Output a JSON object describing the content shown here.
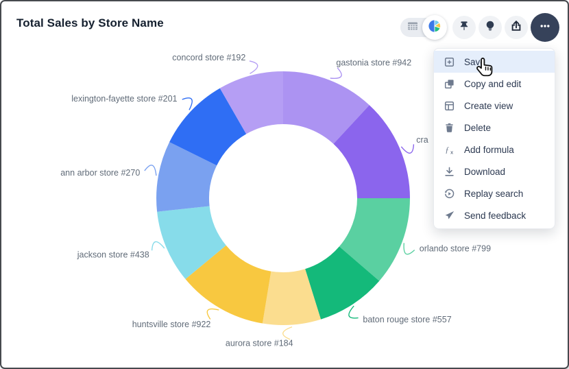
{
  "header": {
    "title": "Total Sales by Store Name"
  },
  "toolbar": {
    "view_toggle": {
      "options": [
        {
          "name": "table-view",
          "icon": "table-icon",
          "selected": false
        },
        {
          "name": "chart-view",
          "icon": "pie-chart-icon",
          "selected": true
        }
      ]
    },
    "buttons": [
      {
        "name": "pin",
        "icon": "pin-icon",
        "active": false
      },
      {
        "name": "insights",
        "icon": "lightbulb-icon",
        "active": false
      },
      {
        "name": "share",
        "icon": "share-icon",
        "active": false
      },
      {
        "name": "more-options",
        "icon": "ellipsis-icon",
        "active": true
      }
    ]
  },
  "menu": {
    "items": [
      {
        "label": "Save",
        "icon": "save-icon",
        "highlighted": true
      },
      {
        "label": "Copy and edit",
        "icon": "copy-icon",
        "highlighted": false
      },
      {
        "label": "Create view",
        "icon": "create-view-icon",
        "highlighted": false
      },
      {
        "label": "Delete",
        "icon": "trash-icon",
        "highlighted": false
      },
      {
        "label": "Add formula",
        "icon": "formula-icon",
        "highlighted": false
      },
      {
        "label": "Download",
        "icon": "download-icon",
        "highlighted": false
      },
      {
        "label": "Replay search",
        "icon": "replay-icon",
        "highlighted": false
      },
      {
        "label": "Send feedback",
        "icon": "send-icon",
        "highlighted": false
      }
    ]
  },
  "chart_data": {
    "type": "pie",
    "subtype": "donut",
    "title": "Total Sales by Store Name",
    "legend_position": "none",
    "label_style": "outside-with-leader-lines",
    "values_note": "percent of total, estimated from arc angles; no numeric values shown on screen",
    "slices": [
      {
        "label": "gastonia store #942",
        "value": 11.9,
        "color": "#ac93f2",
        "truncated": false
      },
      {
        "label": "cra",
        "value": 13.1,
        "color": "#8b65ed",
        "truncated": true
      },
      {
        "label": "orlando store #799",
        "value": 11.3,
        "color": "#5ad0a1",
        "truncated": false
      },
      {
        "label": "baton rouge store #557",
        "value": 8.9,
        "color": "#14b97a",
        "truncated": false
      },
      {
        "label": "aurora store #184",
        "value": 7.4,
        "color": "#fbdd8f",
        "truncated": false
      },
      {
        "label": "huntsville store #922",
        "value": 11.4,
        "color": "#f8c840",
        "truncated": false
      },
      {
        "label": "jackson store #438",
        "value": 9.3,
        "color": "#87dcea",
        "truncated": false
      },
      {
        "label": "ann arbor store #270",
        "value": 9.0,
        "color": "#7aa1f0",
        "truncated": false
      },
      {
        "label": "lexington-fayette store #201",
        "value": 9.4,
        "color": "#2f6ef4",
        "truncated": false
      },
      {
        "label": "concord store #192",
        "value": 8.3,
        "color": "#b59ef4",
        "truncated": false
      }
    ]
  },
  "colors": {
    "title_text": "#15202f",
    "chart_label_text": "#606b78",
    "menu_text": "#2b3850",
    "menu_highlight": "#e5eefb",
    "icon_gray": "#6e7a8e",
    "toolbar_icon_dark": "#2e3b50",
    "more_button_bg": "#36425a",
    "toolbar_pill_bg": "#e9ecf1"
  }
}
